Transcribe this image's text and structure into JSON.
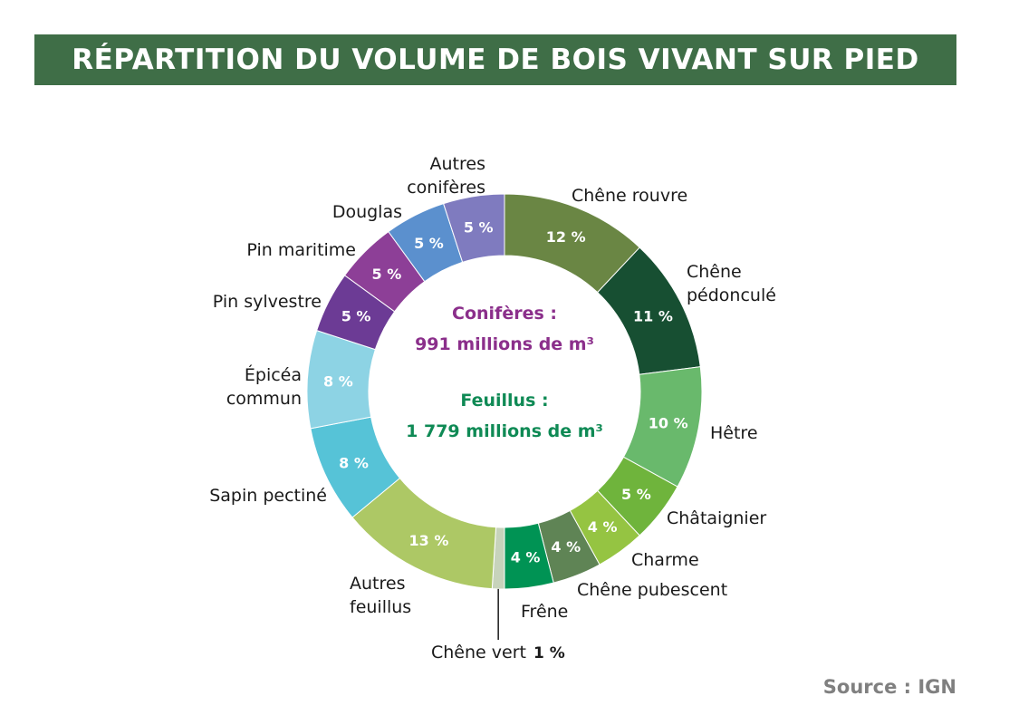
{
  "title": "RÉPARTITION DU VOLUME DE BOIS VIVANT SUR PIED",
  "source": "Source : IGN",
  "colors": {
    "title_bar": "#3f6e47",
    "coniferes": "#8b2f8b",
    "feuillus": "#0f8a55"
  },
  "chart_data": {
    "type": "pie",
    "style": "donut",
    "unit": "%",
    "center_text": [
      {
        "label": "Conifères :",
        "value": "991 millions de m³",
        "color": "#8b2f8b"
      },
      {
        "label": "Feuillus :",
        "value": "1 779 millions de m³",
        "color": "#0f8a55"
      }
    ],
    "slices": [
      {
        "name": "Chêne rouvre",
        "value": 12,
        "value_label": "12 %",
        "color": "#6a8644"
      },
      {
        "name": "Chêne pédonculé",
        "value": 11,
        "value_label": "11 %",
        "color": "#174f32"
      },
      {
        "name": "Hêtre",
        "value": 10,
        "value_label": "10 %",
        "color": "#69b96c"
      },
      {
        "name": "Châtaignier",
        "value": 5,
        "value_label": "5 %",
        "color": "#6fb43c"
      },
      {
        "name": "Charme",
        "value": 4,
        "value_label": "4 %",
        "color": "#95c442"
      },
      {
        "name": "Chêne pubescent",
        "value": 4,
        "value_label": "4 %",
        "color": "#5f8455"
      },
      {
        "name": "Frêne",
        "value": 4,
        "value_label": "4 %",
        "color": "#009354"
      },
      {
        "name": "Chêne vert",
        "value": 1,
        "value_label": "1 %",
        "color": "#c7d3bb"
      },
      {
        "name": "Autres feuillus",
        "value": 13,
        "value_label": "13 %",
        "color": "#adc865"
      },
      {
        "name": "Sapin pectiné",
        "value": 8,
        "value_label": "8 %",
        "color": "#56c3d7"
      },
      {
        "name": "Épicéa commun",
        "value": 8,
        "value_label": "8 %",
        "color": "#8dd3e4"
      },
      {
        "name": "Pin sylvestre",
        "value": 5,
        "value_label": "5 %",
        "color": "#6c3b95"
      },
      {
        "name": "Pin maritime",
        "value": 5,
        "value_label": "5 %",
        "color": "#8d3f97"
      },
      {
        "name": "Douglas",
        "value": 5,
        "value_label": "5 %",
        "color": "#5b90ce"
      },
      {
        "name": "Autres conifères",
        "value": 5,
        "value_label": "5 %",
        "color": "#7f7bbf"
      }
    ]
  }
}
